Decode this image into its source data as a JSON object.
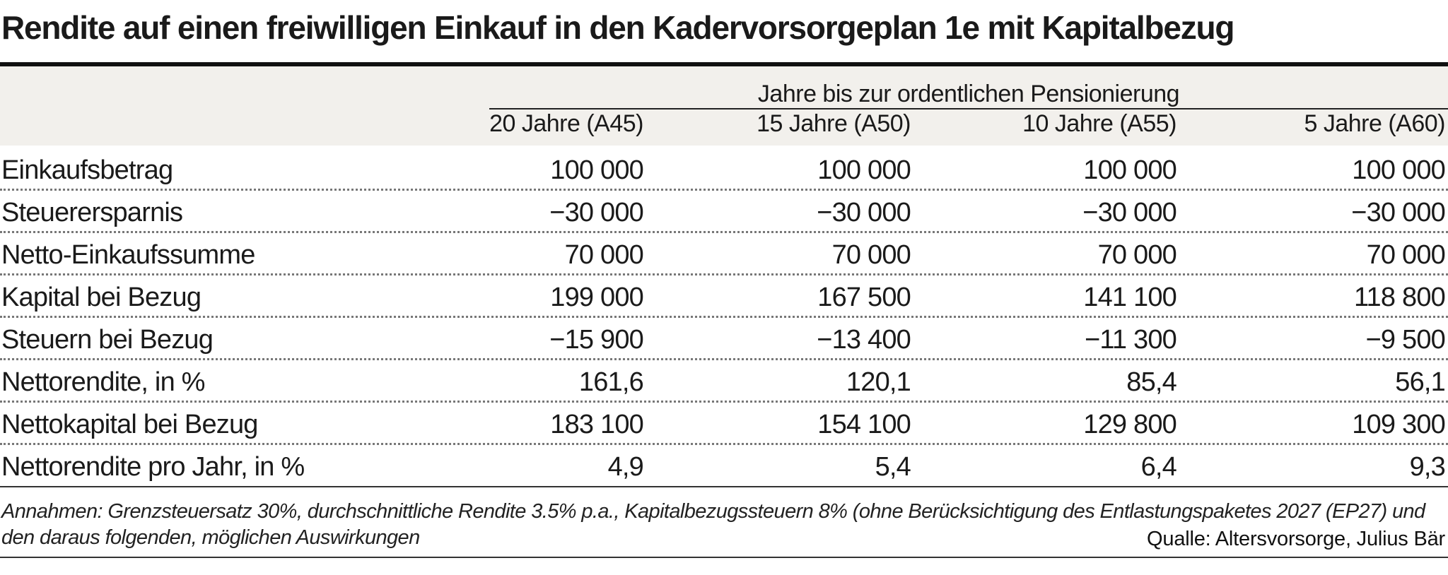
{
  "chart_data": {
    "type": "table",
    "title": "Rendite auf einen freiwilligen Einkauf in den Kadervorsorgeplan 1e mit Kapitalbezug",
    "column_group": "Jahre bis zur ordentlichen Pensionierung",
    "columns": [
      "20 Jahre (A45)",
      "15 Jahre (A50)",
      "10 Jahre (A55)",
      "5 Jahre (A60)"
    ],
    "rows": [
      {
        "label": "Einkaufsbetrag",
        "values": [
          "100 000",
          "100 000",
          "100 000",
          "100 000"
        ]
      },
      {
        "label": "Steuerersparnis",
        "values": [
          "−30 000",
          "−30 000",
          "−30 000",
          "−30 000"
        ]
      },
      {
        "label": "Netto-Einkaufssumme",
        "values": [
          "70 000",
          "70 000",
          "70 000",
          "70 000"
        ]
      },
      {
        "label": "Kapital bei Bezug",
        "values": [
          "199 000",
          "167 500",
          "141 100",
          "118 800"
        ]
      },
      {
        "label": "Steuern bei Bezug",
        "values": [
          "−15 900",
          "−13 400",
          "−11 300",
          "−9 500"
        ]
      },
      {
        "label": "Nettorendite, in %",
        "values": [
          "161,6",
          "120,1",
          "85,4",
          "56,1"
        ]
      },
      {
        "label": "Nettokapital bei Bezug",
        "values": [
          "183 100",
          "154 100",
          "129 800",
          "109 300"
        ]
      },
      {
        "label": "Nettorendite pro Jahr, in %",
        "values": [
          "4,9",
          "5,4",
          "6,4",
          "9,3"
        ]
      }
    ],
    "notes": "Annahmen: Grenzsteuersatz 30%, durchschnittliche Rendite 3.5% p.a., Kapitalbezugssteuern 8% (ohne Berücksichtigung des Entlastungspaketes 2027 (EP27) und den daraus folgenden, möglichen Auswirkungen",
    "source": "Qualle: Altersvorsorge, Julius Bär"
  },
  "colors": {
    "header_band": "#f2f0ec",
    "text": "#1a1a1a",
    "rule": "#111111"
  }
}
